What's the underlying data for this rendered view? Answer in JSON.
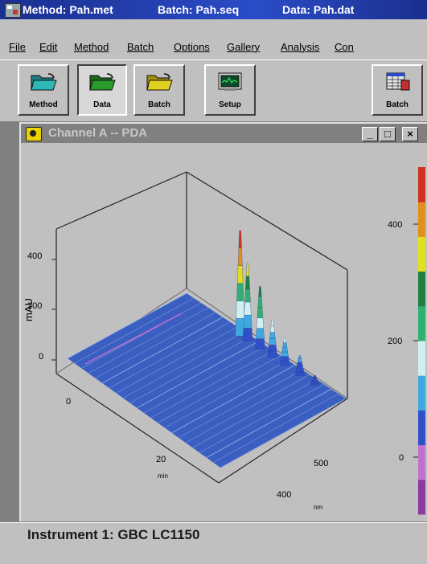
{
  "titlebar": {
    "method": "Method: Pah.met",
    "batch": "Batch: Pah.seq",
    "data": "Data: Pah.dat"
  },
  "menu": {
    "items": [
      "File",
      "Edit",
      "Method",
      "Batch",
      "Options",
      "Gallery",
      "Analysis",
      "Con"
    ]
  },
  "toolbar": {
    "buttons": [
      {
        "label": "Method",
        "icon": "folder-open-icon",
        "color": "#2fb8b8"
      },
      {
        "label": "Data",
        "icon": "folder-open-icon",
        "color": "#2a9a2a"
      },
      {
        "label": "Batch",
        "icon": "folder-open-icon",
        "color": "#e0d020"
      },
      {
        "label": "Setup",
        "icon": "monitor-icon"
      },
      {
        "label": "Batch",
        "icon": "grid-table-icon"
      }
    ]
  },
  "child_window": {
    "title": "Channel A -- PDA",
    "minimize_label": "_",
    "maximize_label": "□",
    "close_label": "×"
  },
  "chart_data": {
    "type": "surface-3d",
    "zlabel": "mAU",
    "z_ticks": [
      "0",
      "200",
      "400"
    ],
    "x_ticks": [
      "0",
      "20"
    ],
    "x_unit": "min",
    "y_ticks": [
      "400",
      "500"
    ],
    "y_unit": "nm",
    "colorbar_ticks": [
      "0",
      "200",
      "400"
    ],
    "colorbar_colors": [
      "#8b3a9e",
      "#c070d0",
      "#3050c8",
      "#40a8e0",
      "#d0f0f0",
      "#30b070",
      "#208040",
      "#e0e020",
      "#e09020",
      "#d03020"
    ],
    "peaks": [
      {
        "time_min": 4.5,
        "height_mAU": 0
      },
      {
        "time_min": 12,
        "height_mAU": 420
      },
      {
        "time_min": 13.5,
        "height_mAU": 310
      },
      {
        "time_min": 16,
        "height_mAU": 250
      },
      {
        "time_min": 18.5,
        "height_mAU": 150
      },
      {
        "time_min": 21,
        "height_mAU": 110
      },
      {
        "time_min": 24,
        "height_mAU": 80
      },
      {
        "time_min": 27,
        "height_mAU": 40
      }
    ]
  },
  "status": {
    "text": "Instrument 1: GBC LC1150"
  }
}
